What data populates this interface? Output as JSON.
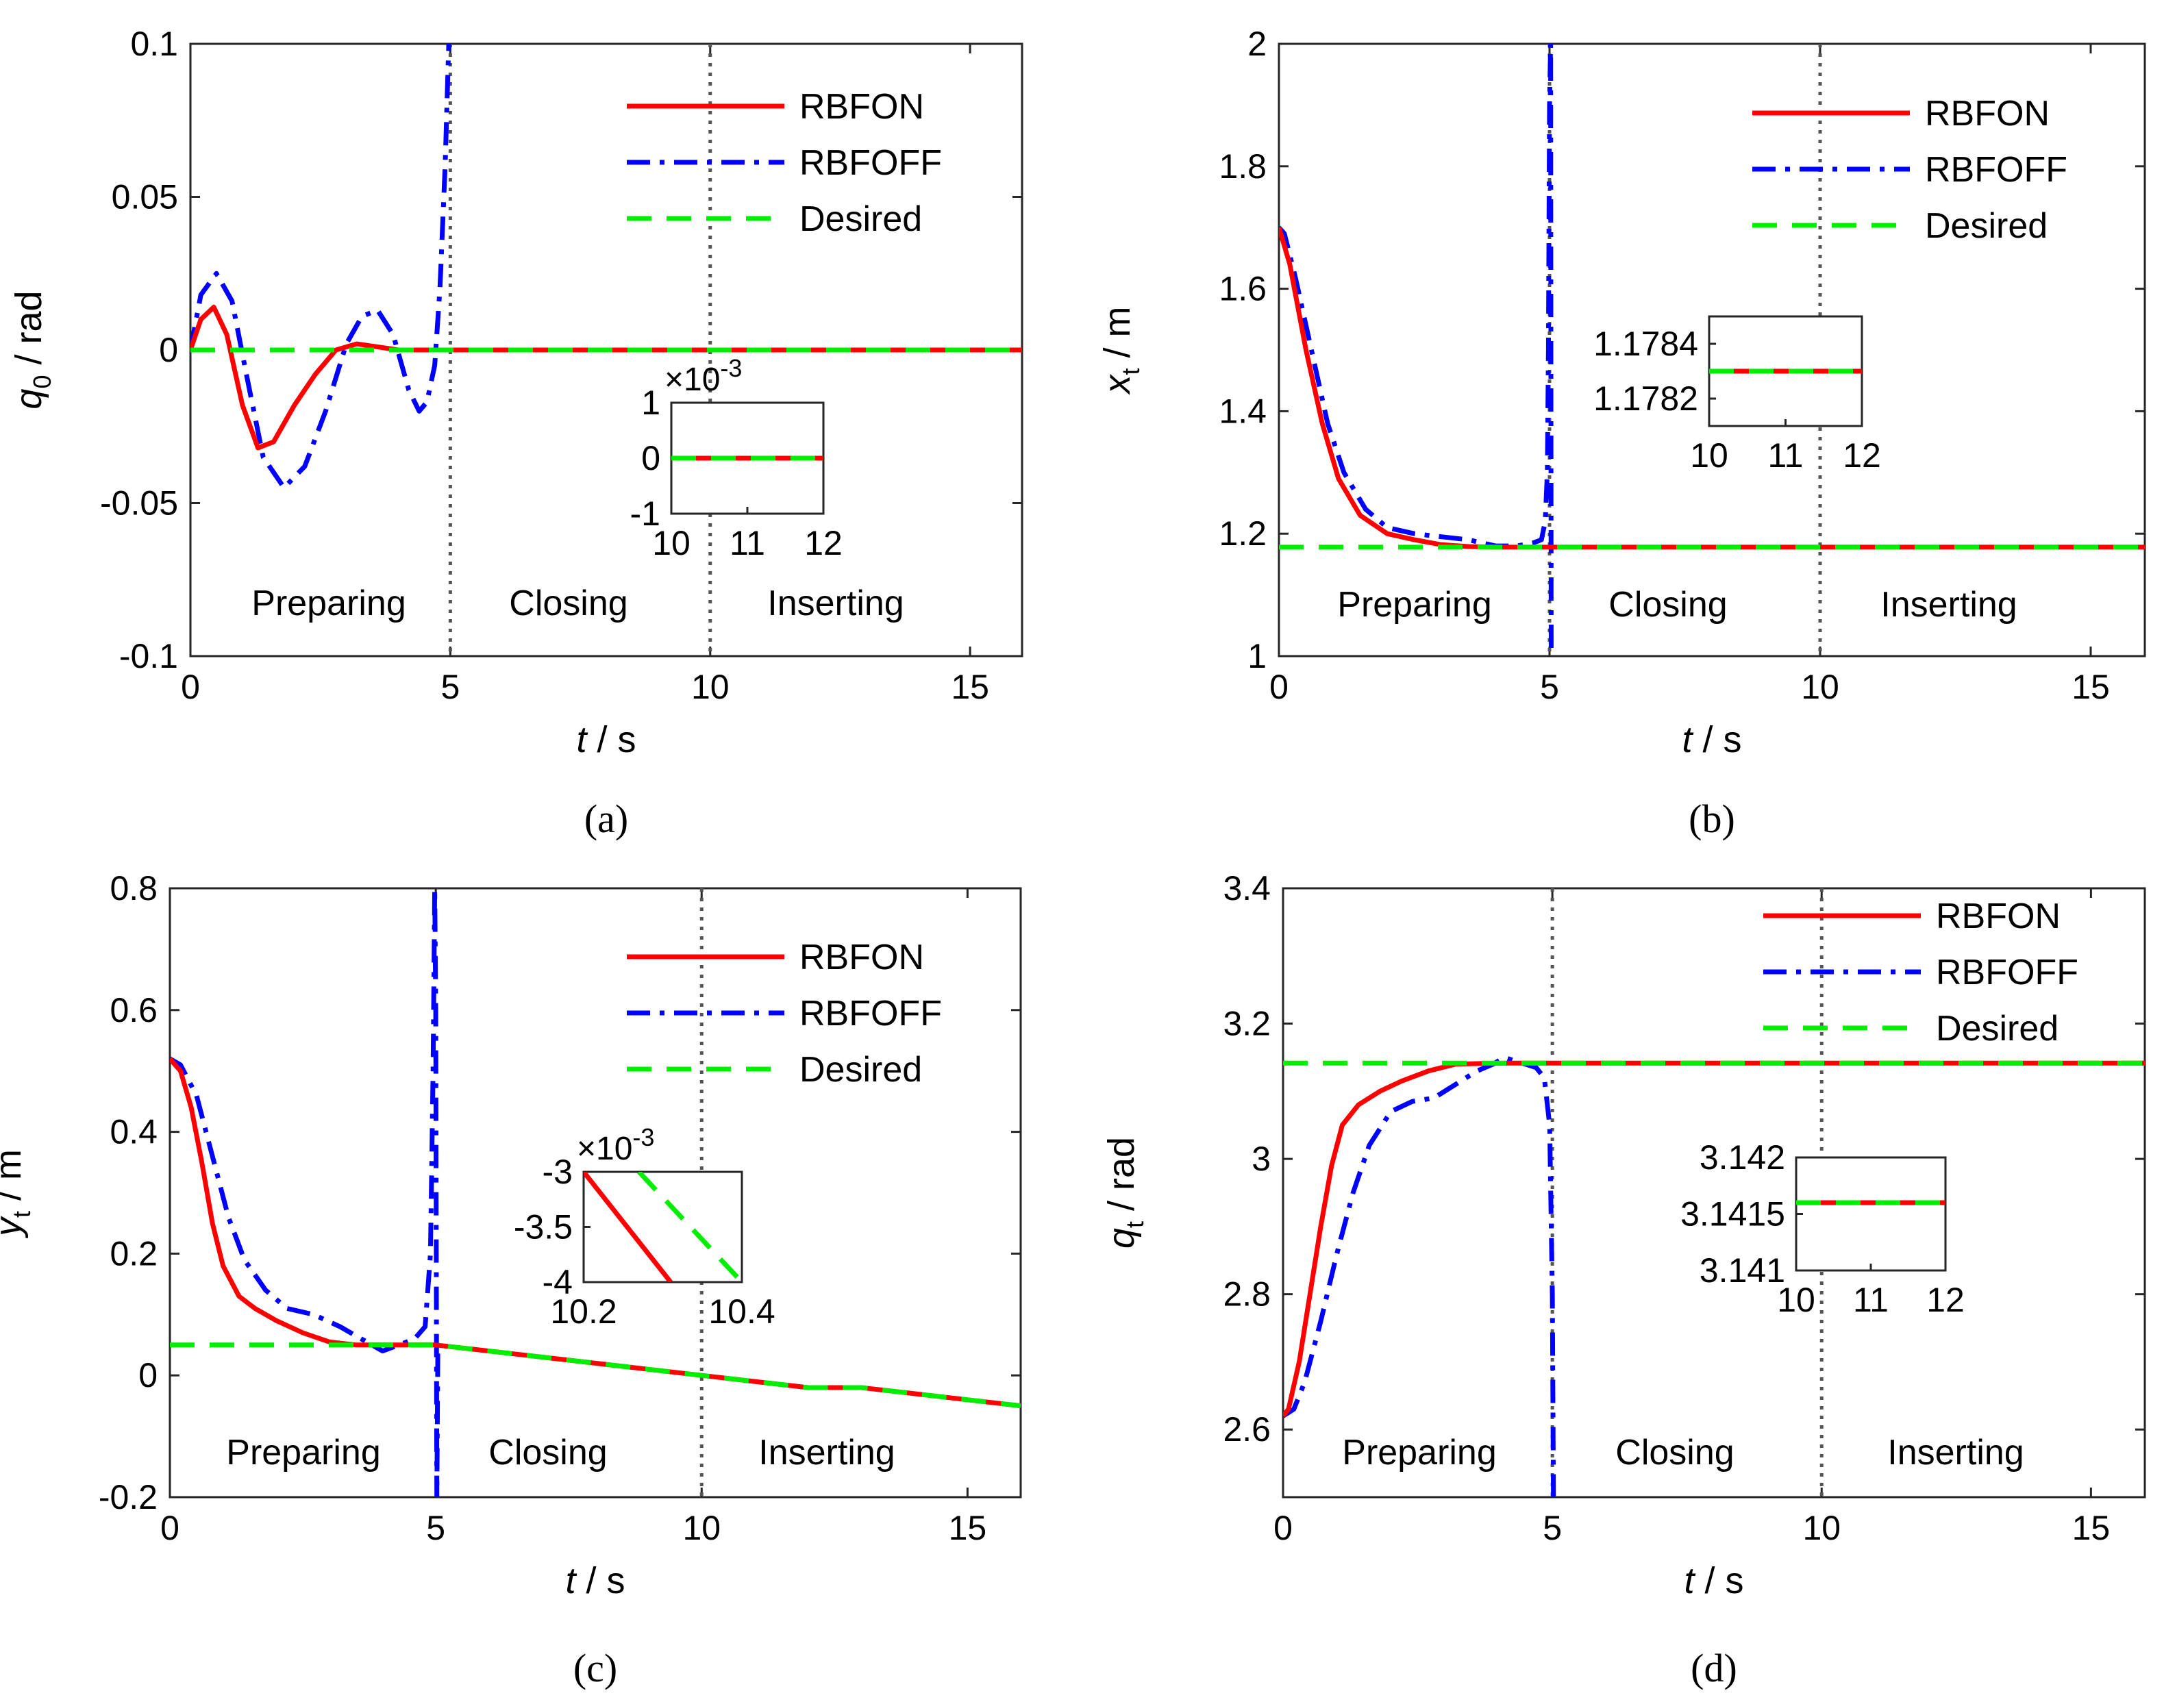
{
  "figure": {
    "legend_entries": [
      "RBFON",
      "RBFOFF",
      "Desired"
    ],
    "phase_labels": [
      "Preparing",
      "Closing",
      "Inserting"
    ],
    "colors": {
      "rbfon": "#ff0000",
      "rbfoff": "#0000ff",
      "desired": "#00ee00",
      "phase_divider": "#555555"
    }
  },
  "chart_data": [
    {
      "id": "a",
      "type": "line",
      "caption": "(a)",
      "xlabel_var": "t",
      "xlabel_unit": " / s",
      "ylabel_var": "q",
      "ylabel_sub": "0",
      "ylabel_unit": " / rad",
      "xlim": [
        0,
        16
      ],
      "ylim": [
        -0.1,
        0.1
      ],
      "xticks": [
        0,
        5,
        10,
        15
      ],
      "xtick_labels": [
        "0",
        "5",
        "10",
        "15"
      ],
      "yticks": [
        -0.1,
        -0.05,
        0,
        0.05,
        0.1
      ],
      "ytick_labels": [
        "-0.1",
        "-0.05",
        "0",
        "0.05",
        "0.1"
      ],
      "phase_lines": [
        5,
        10
      ],
      "legend": "top-right",
      "series": [
        {
          "name": "RBFON",
          "x": [
            0,
            0.2,
            0.45,
            0.7,
            1.0,
            1.3,
            1.6,
            2.0,
            2.4,
            2.8,
            3.2,
            3.6,
            4.0,
            4.5,
            5.0,
            6,
            8,
            10,
            12,
            14,
            16
          ],
          "y": [
            0,
            0.01,
            0.014,
            0.005,
            -0.018,
            -0.032,
            -0.03,
            -0.018,
            -0.008,
            0.0,
            0.002,
            0.001,
            0.0,
            0,
            0,
            0,
            0,
            0,
            0,
            0,
            0
          ]
        },
        {
          "name": "RBFOFF",
          "x": [
            0,
            0.2,
            0.5,
            0.8,
            1.1,
            1.4,
            1.8,
            2.2,
            2.6,
            3.0,
            3.3,
            3.6,
            3.9,
            4.2,
            4.4,
            4.55,
            4.7,
            4.8,
            4.9,
            4.97
          ],
          "y": [
            0,
            0.018,
            0.025,
            0.016,
            -0.01,
            -0.035,
            -0.045,
            -0.038,
            -0.02,
            0.002,
            0.011,
            0.013,
            0.005,
            -0.013,
            -0.02,
            -0.017,
            -0.005,
            0.02,
            0.06,
            0.1
          ]
        },
        {
          "name": "Desired",
          "x": [
            0,
            16
          ],
          "y": [
            0,
            0
          ]
        }
      ],
      "inset": {
        "xlim": [
          10,
          12
        ],
        "ylim": [
          -0.001,
          0.001
        ],
        "xticks": [
          10,
          11,
          12
        ],
        "xtick_labels": [
          "10",
          "11",
          "12"
        ],
        "yticks": [
          -0.001,
          0,
          0.001
        ],
        "ytick_labels": [
          "-1",
          "0",
          "1"
        ],
        "multiplier": "×10",
        "multiplier_exp": "-3",
        "series": [
          {
            "name": "RBFON",
            "x": [
              10,
              12
            ],
            "y": [
              0,
              0
            ]
          },
          {
            "name": "Desired",
            "x": [
              10,
              12
            ],
            "y": [
              0,
              0
            ]
          }
        ]
      }
    },
    {
      "id": "b",
      "type": "line",
      "caption": "(b)",
      "xlabel_var": "t",
      "xlabel_unit": " / s",
      "ylabel_var": "x",
      "ylabel_sub": "t",
      "ylabel_unit": " / m",
      "xlim": [
        0,
        16
      ],
      "ylim": [
        1,
        2
      ],
      "xticks": [
        0,
        5,
        10,
        15
      ],
      "xtick_labels": [
        "0",
        "5",
        "10",
        "15"
      ],
      "yticks": [
        1,
        1.2,
        1.4,
        1.6,
        1.8,
        2
      ],
      "ytick_labels": [
        "1",
        "1.2",
        "1.4",
        "1.6",
        "1.8",
        "2"
      ],
      "phase_lines": [
        5,
        10
      ],
      "legend": "top-right",
      "series": [
        {
          "name": "RBFON",
          "x": [
            0,
            0.2,
            0.5,
            0.8,
            1.1,
            1.5,
            2.0,
            2.5,
            3.0,
            3.5,
            4.0,
            4.5,
            5,
            8,
            12,
            16
          ],
          "y": [
            1.7,
            1.64,
            1.5,
            1.38,
            1.29,
            1.23,
            1.2,
            1.19,
            1.182,
            1.179,
            1.178,
            1.178,
            1.178,
            1.178,
            1.178,
            1.178
          ]
        },
        {
          "name": "RBFOFF",
          "x": [
            0,
            0.1,
            0.3,
            0.6,
            0.9,
            1.2,
            1.6,
            2.0,
            2.5,
            3.0,
            3.5,
            4.0,
            4.4,
            4.7,
            4.85,
            4.92,
            4.96,
            4.98,
            5.0,
            5.02,
            5.03
          ],
          "y": [
            1.7,
            1.69,
            1.62,
            1.5,
            1.38,
            1.3,
            1.24,
            1.21,
            1.2,
            1.195,
            1.19,
            1.18,
            1.18,
            1.185,
            1.19,
            1.22,
            1.3,
            1.5,
            1.9,
            2.0,
            1.0
          ]
        },
        {
          "name": "Desired",
          "x": [
            0,
            16
          ],
          "y": [
            1.178,
            1.178
          ]
        }
      ],
      "inset": {
        "xlim": [
          10,
          12
        ],
        "ylim": [
          1.1781,
          1.1785
        ],
        "xticks": [
          10,
          11,
          12
        ],
        "xtick_labels": [
          "10",
          "11",
          "12"
        ],
        "yticks": [
          1.1782,
          1.1784
        ],
        "ytick_labels": [
          "1.1782",
          "1.1784"
        ],
        "series": [
          {
            "name": "RBFON",
            "x": [
              10,
              12
            ],
            "y": [
              1.1783,
              1.1783
            ]
          },
          {
            "name": "Desired",
            "x": [
              10,
              12
            ],
            "y": [
              1.1783,
              1.1783
            ]
          }
        ]
      }
    },
    {
      "id": "c",
      "type": "line",
      "caption": "(c)",
      "xlabel_var": "t",
      "xlabel_unit": " / s",
      "ylabel_var": "y",
      "ylabel_sub": "t",
      "ylabel_unit": " / m",
      "xlim": [
        0,
        16
      ],
      "ylim": [
        -0.2,
        0.8
      ],
      "xticks": [
        0,
        5,
        10,
        15
      ],
      "xtick_labels": [
        "0",
        "5",
        "10",
        "15"
      ],
      "yticks": [
        -0.2,
        0,
        0.2,
        0.4,
        0.6,
        0.8
      ],
      "ytick_labels": [
        "-0.2",
        "0",
        "0.2",
        "0.4",
        "0.6",
        "0.8"
      ],
      "phase_lines": [
        10
      ],
      "legend": "top-right",
      "series": [
        {
          "name": "RBFON",
          "x": [
            0,
            0.2,
            0.4,
            0.6,
            0.8,
            1.0,
            1.3,
            1.6,
            2.0,
            2.5,
            3.0,
            3.5,
            4.0,
            4.5,
            5,
            6,
            7,
            8,
            9,
            10,
            11,
            12,
            13,
            14,
            15,
            16
          ],
          "y": [
            0.52,
            0.5,
            0.44,
            0.35,
            0.25,
            0.18,
            0.13,
            0.11,
            0.09,
            0.07,
            0.055,
            0.05,
            0.05,
            0.05,
            0.05,
            0.04,
            0.03,
            0.02,
            0.01,
            0.0,
            -0.01,
            -0.02,
            -0.02,
            -0.03,
            -0.04,
            -0.05
          ]
        },
        {
          "name": "RBFOFF",
          "x": [
            0,
            0.2,
            0.5,
            0.8,
            1.1,
            1.4,
            1.8,
            2.2,
            2.7,
            3.2,
            3.6,
            4.0,
            4.3,
            4.6,
            4.8,
            4.9,
            4.95,
            4.98,
            5.0,
            5.01,
            5.02,
            5.04
          ],
          "y": [
            0.52,
            0.51,
            0.46,
            0.36,
            0.26,
            0.19,
            0.14,
            0.11,
            0.1,
            0.08,
            0.06,
            0.04,
            0.05,
            0.06,
            0.08,
            0.2,
            0.5,
            0.8,
            0.6,
            0.2,
            -0.2,
            0.05
          ]
        },
        {
          "name": "Desired",
          "x": [
            0,
            3.0,
            4,
            5,
            6,
            7,
            8,
            9,
            10,
            11,
            12,
            13,
            14,
            15,
            16
          ],
          "y": [
            0.05,
            0.05,
            0.05,
            0.05,
            0.04,
            0.03,
            0.02,
            0.01,
            0.0,
            -0.01,
            -0.02,
            -0.02,
            -0.03,
            -0.04,
            -0.05
          ]
        }
      ],
      "inset": {
        "xlim": [
          10.2,
          10.4
        ],
        "ylim": [
          -0.004,
          -0.003
        ],
        "xticks": [
          10.2,
          10.4
        ],
        "xtick_labels": [
          "10.2",
          "10.4"
        ],
        "yticks": [
          -0.004,
          -0.0035,
          -0.003
        ],
        "ytick_labels": [
          "-4",
          "-3.5",
          "-3"
        ],
        "multiplier": "×10",
        "multiplier_exp": "-3",
        "series": [
          {
            "name": "RBFON",
            "x": [
              10.2,
              10.31
            ],
            "y": [
              -0.003,
              -0.004
            ]
          },
          {
            "name": "Desired",
            "x": [
              10.27,
              10.4
            ],
            "y": [
              -0.003,
              -0.004
            ]
          }
        ]
      }
    },
    {
      "id": "d",
      "type": "line",
      "caption": "(d)",
      "xlabel_var": "t",
      "xlabel_unit": " / s",
      "ylabel_var": "q",
      "ylabel_sub": "t",
      "ylabel_unit": " / rad",
      "xlim": [
        0,
        16
      ],
      "ylim": [
        2.5,
        3.4
      ],
      "xticks": [
        0,
        5,
        10,
        15
      ],
      "xtick_labels": [
        "0",
        "5",
        "10",
        "15"
      ],
      "yticks": [
        2.6,
        2.8,
        3,
        3.2,
        3.4
      ],
      "ytick_labels": [
        "2.6",
        "2.8",
        "3",
        "3.2",
        "3.4"
      ],
      "phase_lines": [
        5,
        10
      ],
      "legend": "top-right",
      "series": [
        {
          "name": "RBFON",
          "x": [
            0,
            0.1,
            0.3,
            0.5,
            0.7,
            0.9,
            1.1,
            1.4,
            1.8,
            2.2,
            2.7,
            3.2,
            3.7,
            4.2,
            5,
            8,
            12,
            16
          ],
          "y": [
            2.62,
            2.63,
            2.7,
            2.8,
            2.9,
            2.99,
            3.05,
            3.08,
            3.1,
            3.115,
            3.13,
            3.14,
            3.141,
            3.1416,
            3.1416,
            3.1416,
            3.1416,
            3.1416
          ]
        },
        {
          "name": "RBFOFF",
          "x": [
            0,
            0.2,
            0.4,
            0.7,
            1.0,
            1.3,
            1.6,
            2.0,
            2.4,
            2.8,
            3.2,
            3.6,
            3.9,
            4.1,
            4.3,
            4.5,
            4.7,
            4.85,
            4.95,
            5.0,
            5.02,
            5.04
          ],
          "y": [
            2.62,
            2.63,
            2.67,
            2.76,
            2.86,
            2.95,
            3.02,
            3.07,
            3.085,
            3.09,
            3.11,
            3.13,
            3.14,
            3.15,
            3.145,
            3.14,
            3.135,
            3.12,
            3.05,
            2.8,
            2.5,
            2.5
          ]
        },
        {
          "name": "Desired",
          "x": [
            0,
            16
          ],
          "y": [
            3.1416,
            3.1416
          ]
        }
      ],
      "inset": {
        "xlim": [
          10,
          12
        ],
        "ylim": [
          3.141,
          3.142
        ],
        "xticks": [
          10,
          11,
          12
        ],
        "xtick_labels": [
          "10",
          "11",
          "12"
        ],
        "yticks": [
          3.141,
          3.1415,
          3.142
        ],
        "ytick_labels": [
          "3.141",
          "3.1415",
          "3.142"
        ],
        "series": [
          {
            "name": "RBFON",
            "x": [
              10,
              12
            ],
            "y": [
              3.1416,
              3.1416
            ]
          },
          {
            "name": "Desired",
            "x": [
              10,
              12
            ],
            "y": [
              3.1416,
              3.1416
            ]
          }
        ]
      }
    }
  ]
}
